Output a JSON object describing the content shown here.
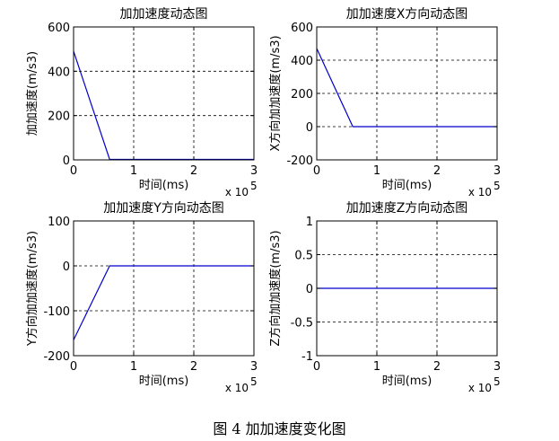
{
  "caption": "图 4  加加速度变化图",
  "chart_data": [
    {
      "type": "line",
      "title": "加加速度动态图",
      "xlabel": "时间(ms)",
      "ylabel": "加加速度(m/s3)",
      "x_exponent_label": "x 10",
      "x_exponent_power": "5",
      "xlim": [
        0,
        3
      ],
      "ylim": [
        0,
        600
      ],
      "xticks": [
        "0",
        "1",
        "2",
        "3"
      ],
      "yticks": [
        "0",
        "200",
        "400",
        "600"
      ],
      "grid": true,
      "line_color": "#0000cc",
      "series": [
        {
          "x": [
            0,
            0.6,
            3
          ],
          "y": [
            490,
            2,
            2
          ]
        }
      ]
    },
    {
      "type": "line",
      "title": "加加速度X方向动态图",
      "xlabel": "时间(ms)",
      "ylabel": "X方向加加速度(m/s3)",
      "x_exponent_label": "x 10",
      "x_exponent_power": "5",
      "xlim": [
        0,
        3
      ],
      "ylim": [
        -200,
        600
      ],
      "xticks": [
        "0",
        "1",
        "2",
        "3"
      ],
      "yticks": [
        "-200",
        "0",
        "200",
        "400",
        "600"
      ],
      "grid": true,
      "line_color": "#0000cc",
      "series": [
        {
          "x": [
            0,
            0.6,
            3
          ],
          "y": [
            470,
            0,
            0
          ]
        }
      ]
    },
    {
      "type": "line",
      "title": "加加速度Y方向动态图",
      "xlabel": "时间(ms)",
      "ylabel": "Y方向加加速度(m/s3)",
      "x_exponent_label": "x 10",
      "x_exponent_power": "5",
      "xlim": [
        0,
        3
      ],
      "ylim": [
        -200,
        100
      ],
      "xticks": [
        "0",
        "1",
        "2",
        "3"
      ],
      "yticks": [
        "-200",
        "-100",
        "0",
        "100"
      ],
      "grid": true,
      "line_color": "#0000cc",
      "series": [
        {
          "x": [
            0,
            0.6,
            1.0,
            1.4,
            2.2,
            2.6,
            3
          ],
          "y": [
            -165,
            0,
            0,
            0,
            0,
            0,
            0
          ]
        }
      ]
    },
    {
      "type": "line",
      "title": "加加速度Z方向动态图",
      "xlabel": "时间(ms)",
      "ylabel": "Z方向加加速度(m/s3)",
      "x_exponent_label": "x 10",
      "x_exponent_power": "5",
      "xlim": [
        0,
        3
      ],
      "ylim": [
        -1,
        1
      ],
      "xticks": [
        "0",
        "1",
        "2",
        "3"
      ],
      "yticks": [
        "-1",
        "-0.5",
        "0",
        "0.5",
        "1"
      ],
      "grid": true,
      "line_color": "#0000cc",
      "series": [
        {
          "x": [
            0,
            3
          ],
          "y": [
            0,
            0
          ]
        }
      ]
    }
  ]
}
